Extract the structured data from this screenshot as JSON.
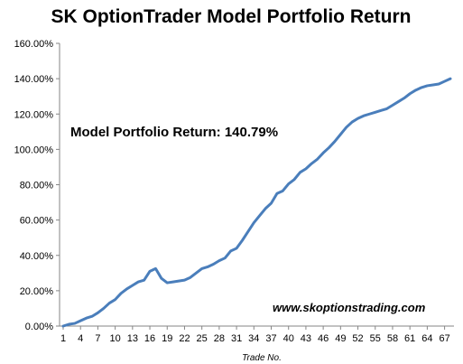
{
  "chart_data": {
    "type": "line",
    "title": "SK OptionTrader Model Portfolio Return",
    "xlabel": "Trade No.",
    "ylabel": "",
    "ylim": [
      0,
      160
    ],
    "y_ticks": [
      "0.00%",
      "20.00%",
      "40.00%",
      "60.00%",
      "80.00%",
      "100.00%",
      "120.00%",
      "140.00%",
      "160.00%"
    ],
    "x_ticks": [
      "1",
      "4",
      "7",
      "10",
      "13",
      "16",
      "19",
      "22",
      "25",
      "28",
      "31",
      "34",
      "37",
      "40",
      "43",
      "46",
      "49",
      "52",
      "55",
      "58",
      "61",
      "64",
      "67"
    ],
    "grid": false,
    "annotation": "Model Portfolio Return: 140.79%",
    "watermark": "www.skoptionstrading.com",
    "line_color": "#4a7ebb",
    "series": [
      {
        "x": [
          1,
          2,
          3,
          4,
          5,
          6,
          7,
          8,
          9,
          10,
          11,
          12,
          13,
          14,
          15,
          16,
          17,
          18,
          19,
          20,
          21,
          22,
          23,
          24,
          25,
          26,
          27,
          28,
          29,
          30,
          31,
          32,
          33,
          34,
          35,
          36,
          37,
          38,
          39,
          40,
          41,
          42,
          43,
          44,
          45,
          46,
          47,
          48,
          49,
          50,
          51,
          52,
          53,
          54,
          55,
          56,
          57,
          58,
          59,
          60,
          61,
          62,
          63,
          64,
          65,
          66,
          67,
          68
        ],
        "values": [
          0.0,
          1.0,
          1.5,
          3.0,
          4.5,
          5.5,
          7.5,
          10.0,
          13.0,
          15.0,
          18.5,
          21.0,
          23.0,
          25.0,
          26.0,
          31.0,
          32.5,
          27.0,
          24.5,
          25.0,
          25.5,
          26.0,
          27.5,
          30.0,
          32.5,
          33.5,
          35.0,
          37.0,
          38.5,
          42.5,
          44.0,
          48.5,
          53.5,
          58.5,
          62.5,
          66.5,
          69.5,
          75.0,
          76.5,
          80.5,
          83.0,
          87.0,
          89.0,
          92.0,
          94.5,
          98.0,
          101.0,
          104.5,
          108.5,
          112.5,
          115.5,
          117.5,
          119.0,
          120.0,
          121.0,
          122.0,
          123.0,
          125.0,
          127.0,
          129.0,
          131.5,
          133.5,
          135.0,
          136.0,
          136.5,
          137.0,
          138.5,
          140.0
        ]
      }
    ]
  }
}
